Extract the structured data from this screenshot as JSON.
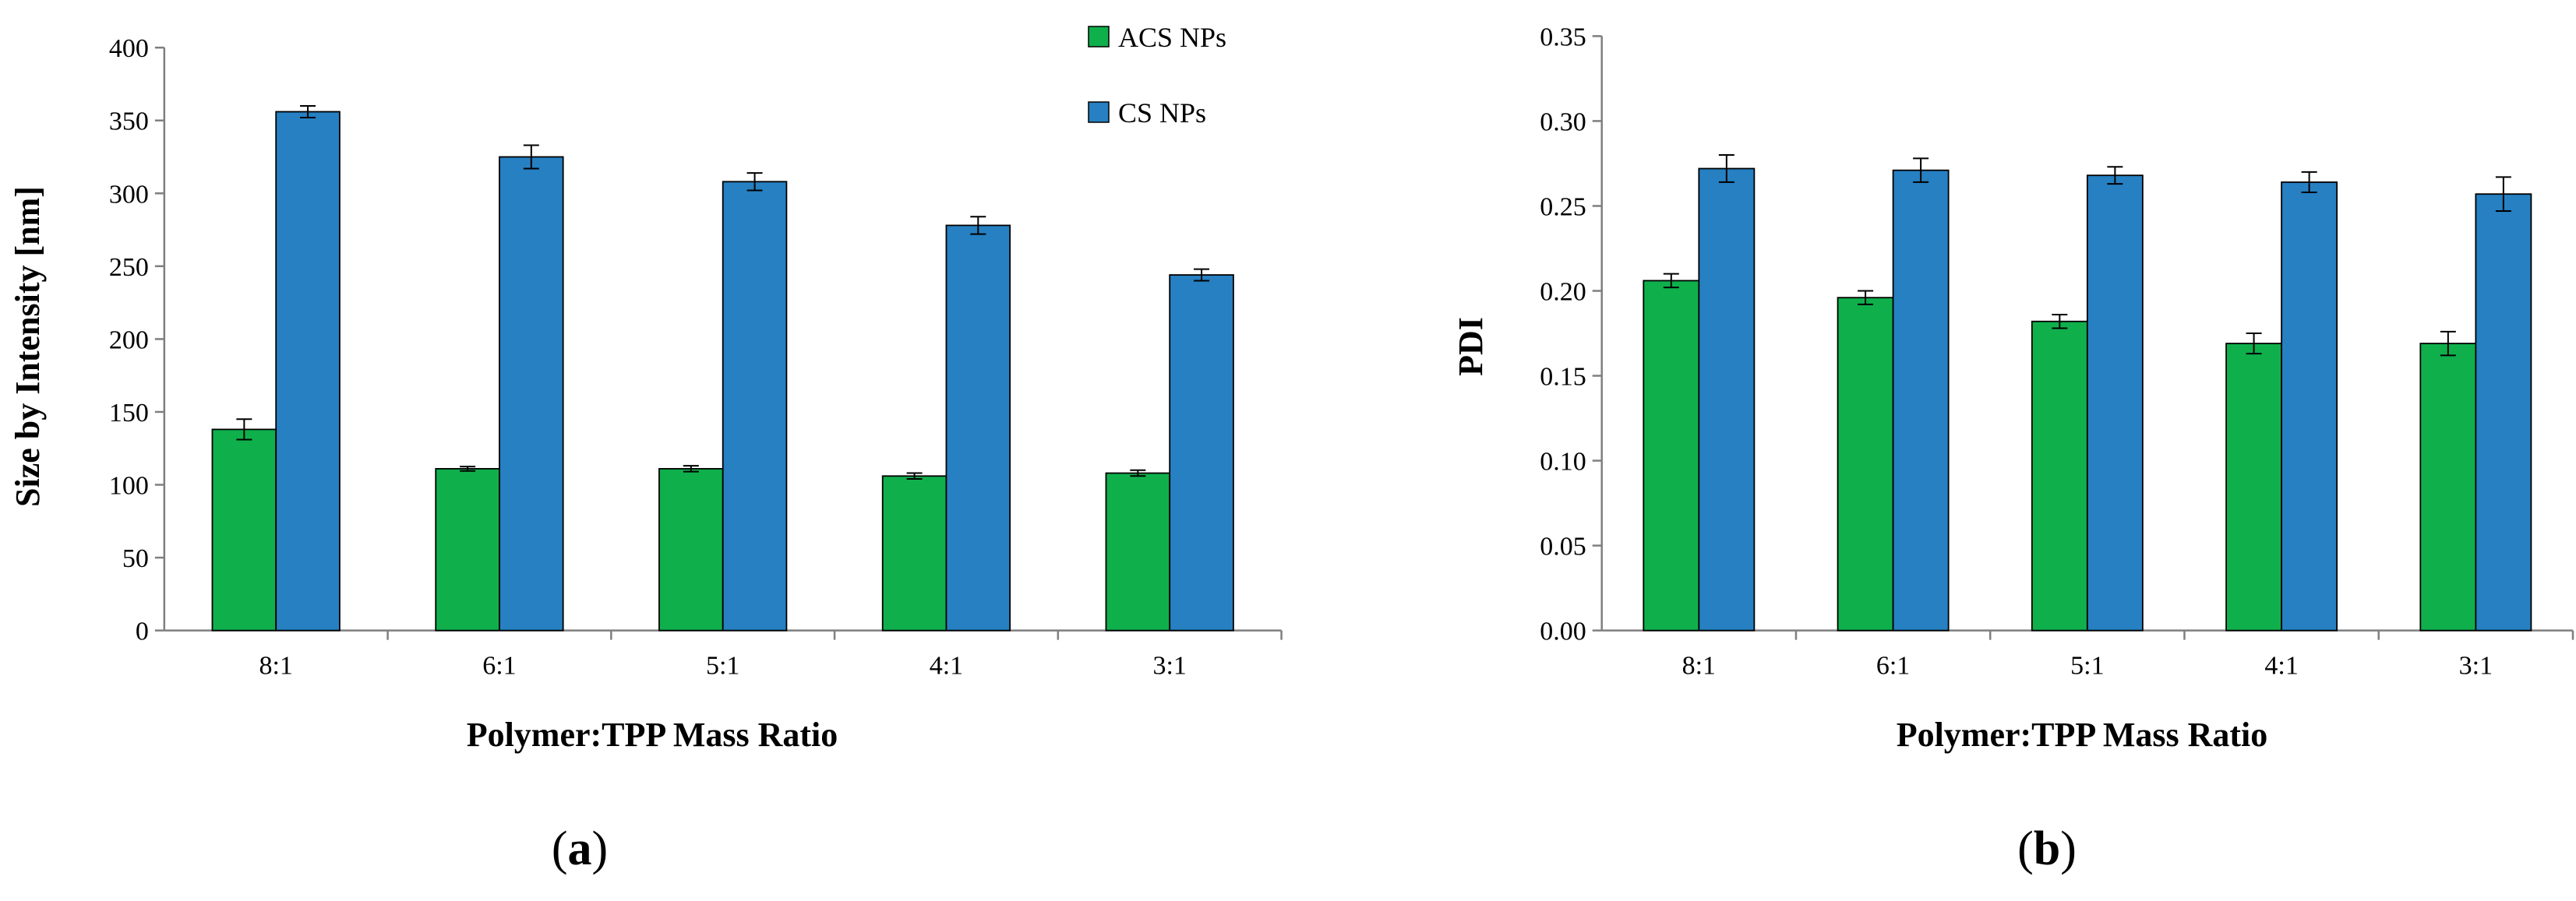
{
  "chart_data": [
    {
      "panel": "a",
      "type": "bar",
      "xlabel": "Polymer:TPP Mass Ratio",
      "ylabel": "Size by Intensity [nm]",
      "ylim": [
        0,
        400
      ],
      "yticks": [
        "0",
        "50",
        "100",
        "150",
        "200",
        "250",
        "300",
        "350",
        "400"
      ],
      "ytick_values": [
        0,
        50,
        100,
        150,
        200,
        250,
        300,
        350,
        400
      ],
      "categories": [
        "8:1",
        "6:1",
        "5:1",
        "4:1",
        "3:1"
      ],
      "series": [
        {
          "name": "ACS NPs",
          "color": "#0fb04c",
          "values": [
            138,
            111,
            111,
            106,
            108
          ],
          "errors": [
            7,
            1.5,
            2,
            2,
            2
          ]
        },
        {
          "name": "CS NPs",
          "color": "#2680c2",
          "values": [
            356,
            325,
            308,
            278,
            244
          ],
          "errors": [
            4,
            8,
            6,
            6,
            4
          ]
        }
      ],
      "legend": "top-right",
      "grid": false
    },
    {
      "panel": "b",
      "type": "bar",
      "xlabel": "Polymer:TPP Mass Ratio",
      "ylabel": "PDI",
      "ylim": [
        0,
        0.35
      ],
      "yticks": [
        "0.00",
        "0.05",
        "0.10",
        "0.15",
        "0.20",
        "0.25",
        "0.30",
        "0.35"
      ],
      "ytick_values": [
        0,
        0.05,
        0.1,
        0.15,
        0.2,
        0.25,
        0.3,
        0.35
      ],
      "categories": [
        "8:1",
        "6:1",
        "5:1",
        "4:1",
        "3:1"
      ],
      "series": [
        {
          "name": "ACS NPs",
          "color": "#0fb04c",
          "values": [
            0.206,
            0.196,
            0.182,
            0.169,
            0.169
          ],
          "errors": [
            0.004,
            0.004,
            0.004,
            0.006,
            0.007
          ]
        },
        {
          "name": "CS NPs",
          "color": "#2680c2",
          "values": [
            0.272,
            0.271,
            0.268,
            0.264,
            0.257
          ],
          "errors": [
            0.008,
            0.007,
            0.005,
            0.006,
            0.01
          ]
        }
      ],
      "legend": "none",
      "grid": false
    }
  ],
  "panel_labels": [
    {
      "open": "(",
      "letter": "a",
      "close": ")"
    },
    {
      "open": "(",
      "letter": "b",
      "close": ")"
    }
  ]
}
